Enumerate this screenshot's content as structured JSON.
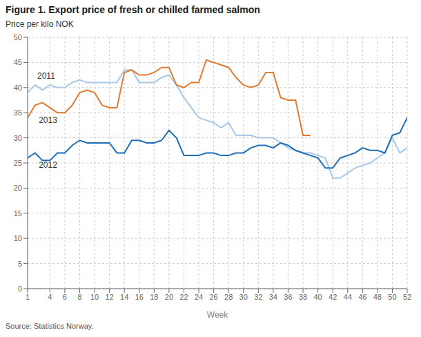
{
  "chart_data": {
    "type": "line",
    "title": "Figure 1. Export price of fresh or chilled farmed salmon",
    "y_label": "Price per kilo NOK",
    "x_label": "Week",
    "source": "Source: Statistics Norway.",
    "x": [
      1,
      2,
      3,
      4,
      5,
      6,
      7,
      8,
      9,
      10,
      11,
      12,
      13,
      14,
      15,
      16,
      17,
      18,
      19,
      20,
      21,
      22,
      23,
      24,
      25,
      26,
      27,
      28,
      29,
      30,
      31,
      32,
      33,
      34,
      35,
      36,
      37,
      38,
      39,
      40,
      41,
      42,
      43,
      44,
      45,
      46,
      47,
      48,
      49,
      50,
      51,
      52
    ],
    "series": [
      {
        "name": "2011",
        "color": "#a8c8e8",
        "label_x": 2.3,
        "label_y": 41.8,
        "values": [
          39,
          40.5,
          39.5,
          40.5,
          40,
          40,
          41,
          41.5,
          41,
          41,
          41,
          41,
          41,
          43.5,
          43.5,
          41,
          41,
          41,
          42,
          42.5,
          40.5,
          38,
          36,
          34,
          33.5,
          33,
          32,
          33,
          30.5,
          30.5,
          30.5,
          30,
          30,
          30,
          29,
          28,
          27.5,
          27,
          27,
          26.5,
          26,
          22,
          22,
          23,
          24,
          24.5,
          25,
          26,
          27,
          30,
          27,
          28
        ]
      },
      {
        "name": "2012",
        "color": "#1f6eb5",
        "label_x": 2.5,
        "label_y": 24.0,
        "values": [
          26,
          27,
          25.5,
          25.5,
          27,
          27,
          28.5,
          29.5,
          29,
          29,
          29,
          29,
          27,
          27,
          29.5,
          29.5,
          29,
          29,
          29.5,
          31.5,
          30,
          26.5,
          26.5,
          26.5,
          27,
          27,
          26.5,
          26.5,
          27,
          27,
          28,
          28.5,
          28.5,
          28,
          29,
          28.5,
          27.5,
          27,
          26.5,
          26,
          24,
          24,
          26,
          26.5,
          27,
          28,
          27.5,
          27.5,
          27,
          30.5,
          31,
          34
        ]
      },
      {
        "name": "2013",
        "color": "#e07b30",
        "label_x": 2.5,
        "label_y": 33.0,
        "values": [
          34,
          36.5,
          37,
          36,
          35,
          35,
          36.5,
          39,
          39.5,
          39,
          36.5,
          36,
          36,
          43,
          43.5,
          42.5,
          42.5,
          43,
          44,
          44,
          40.5,
          40,
          41,
          41,
          45.5,
          45,
          44.5,
          44,
          42,
          40.5,
          40,
          40.5,
          43,
          43,
          38,
          37.5,
          37.5,
          30.5,
          30.5,
          null,
          null,
          null,
          null,
          null,
          null,
          null,
          null,
          null,
          null,
          null,
          null,
          null
        ]
      }
    ],
    "xlim": [
      1,
      52
    ],
    "ylim": [
      0,
      50
    ],
    "xticks": [
      1,
      4,
      6,
      8,
      10,
      12,
      14,
      16,
      18,
      20,
      22,
      24,
      26,
      28,
      30,
      32,
      34,
      36,
      38,
      40,
      42,
      44,
      46,
      48,
      50,
      52
    ],
    "yticks": [
      0,
      5,
      10,
      15,
      20,
      25,
      30,
      35,
      40,
      45,
      50
    ],
    "grid": true
  }
}
